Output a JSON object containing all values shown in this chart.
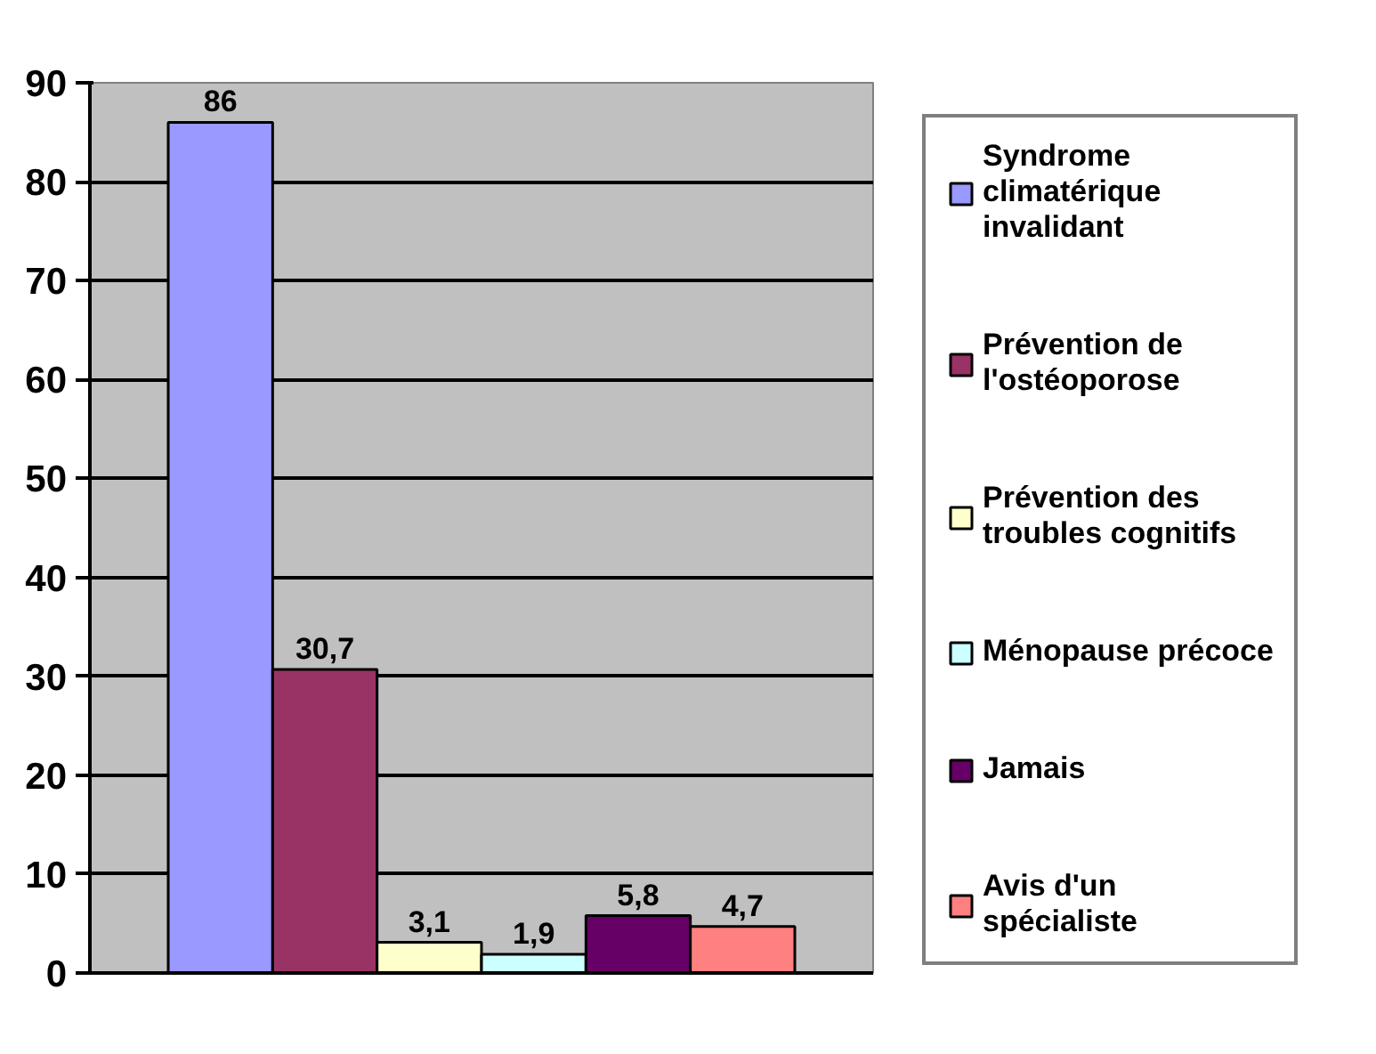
{
  "chart_data": {
    "type": "bar",
    "categories": [
      null
    ],
    "series": [
      {
        "name": "Syndrome climatérique invalidant",
        "color": "#9999ff",
        "values": [
          86
        ],
        "value_labels": [
          "86"
        ]
      },
      {
        "name": "Prévention de l'ostéoporose",
        "color": "#993366",
        "values": [
          30.7
        ],
        "value_labels": [
          "30,7"
        ]
      },
      {
        "name": "Prévention des troubles cognitifs",
        "color": "#ffffcc",
        "values": [
          3.1
        ],
        "value_labels": [
          "3,1"
        ]
      },
      {
        "name": "Ménopause précoce",
        "color": "#ccffff",
        "values": [
          1.9
        ],
        "value_labels": [
          "1,9"
        ]
      },
      {
        "name": "Jamais",
        "color": "#660066",
        "values": [
          5.8
        ],
        "value_labels": [
          "5,8"
        ]
      },
      {
        "name": "Avis d'un spécialiste",
        "color": "#ff8080",
        "values": [
          4.7
        ],
        "value_labels": [
          "4,7"
        ]
      }
    ],
    "ylim": [
      0,
      90
    ],
    "yticks": [
      0,
      10,
      20,
      30,
      40,
      50,
      60,
      70,
      80,
      90
    ],
    "grid": "y",
    "legend": "right"
  }
}
